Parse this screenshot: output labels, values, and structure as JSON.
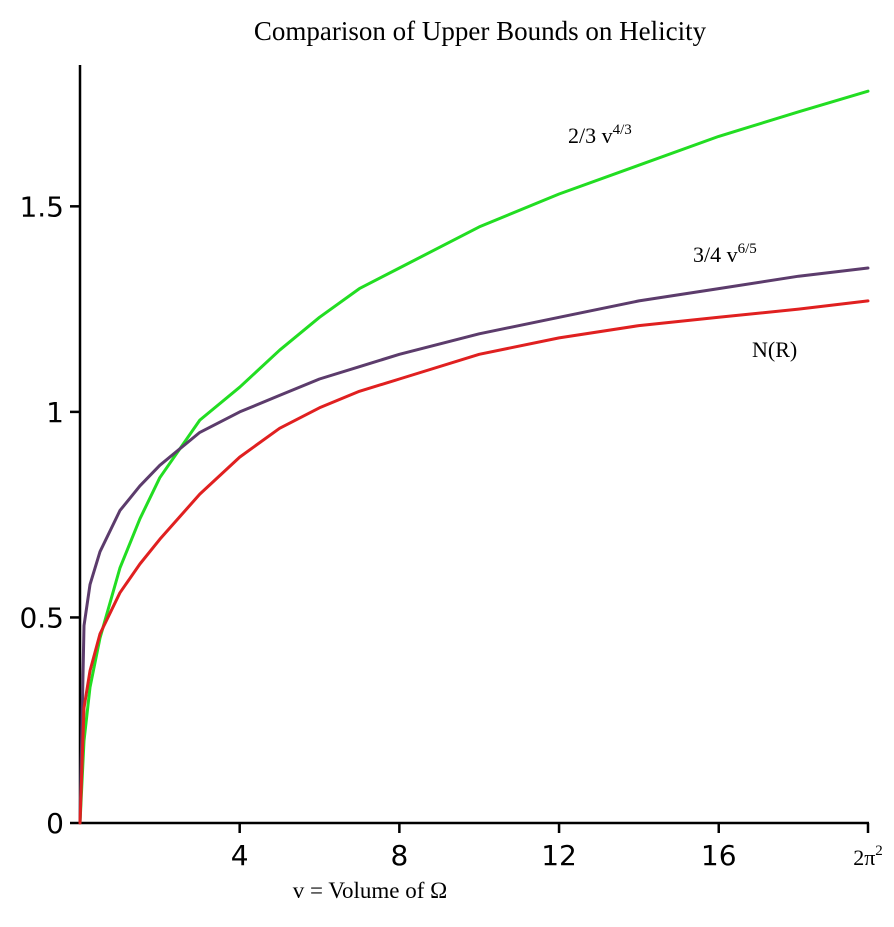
{
  "chart_data": {
    "type": "line",
    "title": "Comparison of Upper Bounds on Helicity",
    "xlabel": "v = Volume of  Ω",
    "ylabel": "",
    "xlim": [
      0,
      19.739
    ],
    "ylim": [
      0,
      1.8
    ],
    "x_ticks": [
      {
        "value": 4,
        "label": "4"
      },
      {
        "value": 8,
        "label": "8"
      },
      {
        "value": 12,
        "label": "12"
      },
      {
        "value": 16,
        "label": "16"
      },
      {
        "value": 19.739,
        "label": "2π",
        "sup": "2"
      }
    ],
    "y_ticks": [
      {
        "value": 0,
        "label": "0"
      },
      {
        "value": 0.5,
        "label": "0.5"
      },
      {
        "value": 1,
        "label": "1"
      },
      {
        "value": 1.5,
        "label": "1.5"
      }
    ],
    "grid": false,
    "series": [
      {
        "name": "2/3 v^{4/3}",
        "color": "#22dd22",
        "x": [
          0,
          0.1,
          0.25,
          0.5,
          1,
          1.5,
          2,
          3,
          4,
          5,
          6,
          7,
          8,
          10,
          12,
          14,
          16,
          18,
          19.739
        ],
        "y": [
          0,
          0.2,
          0.33,
          0.45,
          0.62,
          0.74,
          0.84,
          0.98,
          1.06,
          1.15,
          1.23,
          1.3,
          1.35,
          1.45,
          1.53,
          1.6,
          1.67,
          1.73,
          1.78
        ]
      },
      {
        "name": "3/4 v^{6/5}",
        "color": "#5c3c6c",
        "x": [
          0,
          0.1,
          0.25,
          0.5,
          1,
          1.5,
          2,
          3,
          4,
          5,
          6,
          7,
          8,
          10,
          12,
          14,
          16,
          18,
          19.739
        ],
        "y": [
          0,
          0.48,
          0.58,
          0.66,
          0.76,
          0.82,
          0.87,
          0.95,
          1.0,
          1.04,
          1.08,
          1.11,
          1.14,
          1.19,
          1.23,
          1.27,
          1.3,
          1.33,
          1.35
        ]
      },
      {
        "name": "N(R)",
        "color": "#e02020",
        "x": [
          0,
          0.1,
          0.25,
          0.5,
          1,
          1.5,
          2,
          3,
          4,
          5,
          6,
          7,
          8,
          10,
          12,
          14,
          16,
          18,
          19.739
        ],
        "y": [
          0,
          0.28,
          0.37,
          0.46,
          0.56,
          0.63,
          0.69,
          0.8,
          0.89,
          0.96,
          1.01,
          1.05,
          1.08,
          1.14,
          1.18,
          1.21,
          1.23,
          1.25,
          1.27
        ]
      }
    ],
    "annotations": [
      {
        "series": 0,
        "base": "2/3 v",
        "sup": "4/3"
      },
      {
        "series": 1,
        "base": "3/4 v",
        "sup": "6/5"
      },
      {
        "series": 2,
        "base": "N(R)",
        "sup": ""
      }
    ]
  }
}
